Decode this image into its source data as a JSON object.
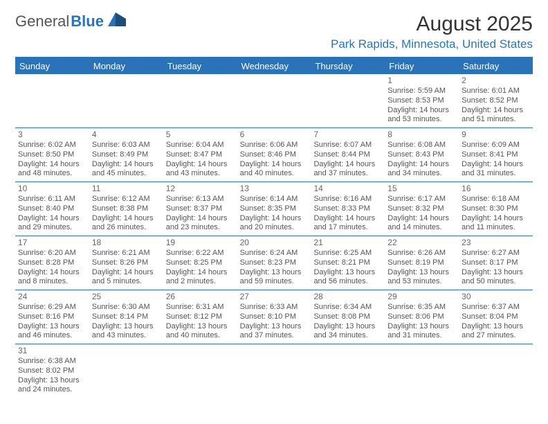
{
  "logo": {
    "text1": "General",
    "text2": "Blue"
  },
  "title": "August 2025",
  "location": "Park Rapids, Minnesota, United States",
  "colors": {
    "accent": "#2b73b8",
    "text": "#555555",
    "titleText": "#333333",
    "background": "#ffffff"
  },
  "typography": {
    "title_fontsize": 30,
    "location_fontsize": 17,
    "header_fontsize": 13,
    "cell_fontsize": 11,
    "logo_fontsize": 22
  },
  "dayHeaders": [
    "Sunday",
    "Monday",
    "Tuesday",
    "Wednesday",
    "Thursday",
    "Friday",
    "Saturday"
  ],
  "weeks": [
    [
      {
        "blank": true
      },
      {
        "blank": true
      },
      {
        "blank": true
      },
      {
        "blank": true
      },
      {
        "blank": true
      },
      {
        "day": "1",
        "sunrise": "Sunrise: 5:59 AM",
        "sunset": "Sunset: 8:53 PM",
        "daylight": "Daylight: 14 hours and 53 minutes."
      },
      {
        "day": "2",
        "sunrise": "Sunrise: 6:01 AM",
        "sunset": "Sunset: 8:52 PM",
        "daylight": "Daylight: 14 hours and 51 minutes."
      }
    ],
    [
      {
        "day": "3",
        "sunrise": "Sunrise: 6:02 AM",
        "sunset": "Sunset: 8:50 PM",
        "daylight": "Daylight: 14 hours and 48 minutes."
      },
      {
        "day": "4",
        "sunrise": "Sunrise: 6:03 AM",
        "sunset": "Sunset: 8:49 PM",
        "daylight": "Daylight: 14 hours and 45 minutes."
      },
      {
        "day": "5",
        "sunrise": "Sunrise: 6:04 AM",
        "sunset": "Sunset: 8:47 PM",
        "daylight": "Daylight: 14 hours and 43 minutes."
      },
      {
        "day": "6",
        "sunrise": "Sunrise: 6:06 AM",
        "sunset": "Sunset: 8:46 PM",
        "daylight": "Daylight: 14 hours and 40 minutes."
      },
      {
        "day": "7",
        "sunrise": "Sunrise: 6:07 AM",
        "sunset": "Sunset: 8:44 PM",
        "daylight": "Daylight: 14 hours and 37 minutes."
      },
      {
        "day": "8",
        "sunrise": "Sunrise: 6:08 AM",
        "sunset": "Sunset: 8:43 PM",
        "daylight": "Daylight: 14 hours and 34 minutes."
      },
      {
        "day": "9",
        "sunrise": "Sunrise: 6:09 AM",
        "sunset": "Sunset: 8:41 PM",
        "daylight": "Daylight: 14 hours and 31 minutes."
      }
    ],
    [
      {
        "day": "10",
        "sunrise": "Sunrise: 6:11 AM",
        "sunset": "Sunset: 8:40 PM",
        "daylight": "Daylight: 14 hours and 29 minutes."
      },
      {
        "day": "11",
        "sunrise": "Sunrise: 6:12 AM",
        "sunset": "Sunset: 8:38 PM",
        "daylight": "Daylight: 14 hours and 26 minutes."
      },
      {
        "day": "12",
        "sunrise": "Sunrise: 6:13 AM",
        "sunset": "Sunset: 8:37 PM",
        "daylight": "Daylight: 14 hours and 23 minutes."
      },
      {
        "day": "13",
        "sunrise": "Sunrise: 6:14 AM",
        "sunset": "Sunset: 8:35 PM",
        "daylight": "Daylight: 14 hours and 20 minutes."
      },
      {
        "day": "14",
        "sunrise": "Sunrise: 6:16 AM",
        "sunset": "Sunset: 8:33 PM",
        "daylight": "Daylight: 14 hours and 17 minutes."
      },
      {
        "day": "15",
        "sunrise": "Sunrise: 6:17 AM",
        "sunset": "Sunset: 8:32 PM",
        "daylight": "Daylight: 14 hours and 14 minutes."
      },
      {
        "day": "16",
        "sunrise": "Sunrise: 6:18 AM",
        "sunset": "Sunset: 8:30 PM",
        "daylight": "Daylight: 14 hours and 11 minutes."
      }
    ],
    [
      {
        "day": "17",
        "sunrise": "Sunrise: 6:20 AM",
        "sunset": "Sunset: 8:28 PM",
        "daylight": "Daylight: 14 hours and 8 minutes."
      },
      {
        "day": "18",
        "sunrise": "Sunrise: 6:21 AM",
        "sunset": "Sunset: 8:26 PM",
        "daylight": "Daylight: 14 hours and 5 minutes."
      },
      {
        "day": "19",
        "sunrise": "Sunrise: 6:22 AM",
        "sunset": "Sunset: 8:25 PM",
        "daylight": "Daylight: 14 hours and 2 minutes."
      },
      {
        "day": "20",
        "sunrise": "Sunrise: 6:24 AM",
        "sunset": "Sunset: 8:23 PM",
        "daylight": "Daylight: 13 hours and 59 minutes."
      },
      {
        "day": "21",
        "sunrise": "Sunrise: 6:25 AM",
        "sunset": "Sunset: 8:21 PM",
        "daylight": "Daylight: 13 hours and 56 minutes."
      },
      {
        "day": "22",
        "sunrise": "Sunrise: 6:26 AM",
        "sunset": "Sunset: 8:19 PM",
        "daylight": "Daylight: 13 hours and 53 minutes."
      },
      {
        "day": "23",
        "sunrise": "Sunrise: 6:27 AM",
        "sunset": "Sunset: 8:17 PM",
        "daylight": "Daylight: 13 hours and 50 minutes."
      }
    ],
    [
      {
        "day": "24",
        "sunrise": "Sunrise: 6:29 AM",
        "sunset": "Sunset: 8:16 PM",
        "daylight": "Daylight: 13 hours and 46 minutes."
      },
      {
        "day": "25",
        "sunrise": "Sunrise: 6:30 AM",
        "sunset": "Sunset: 8:14 PM",
        "daylight": "Daylight: 13 hours and 43 minutes."
      },
      {
        "day": "26",
        "sunrise": "Sunrise: 6:31 AM",
        "sunset": "Sunset: 8:12 PM",
        "daylight": "Daylight: 13 hours and 40 minutes."
      },
      {
        "day": "27",
        "sunrise": "Sunrise: 6:33 AM",
        "sunset": "Sunset: 8:10 PM",
        "daylight": "Daylight: 13 hours and 37 minutes."
      },
      {
        "day": "28",
        "sunrise": "Sunrise: 6:34 AM",
        "sunset": "Sunset: 8:08 PM",
        "daylight": "Daylight: 13 hours and 34 minutes."
      },
      {
        "day": "29",
        "sunrise": "Sunrise: 6:35 AM",
        "sunset": "Sunset: 8:06 PM",
        "daylight": "Daylight: 13 hours and 31 minutes."
      },
      {
        "day": "30",
        "sunrise": "Sunrise: 6:37 AM",
        "sunset": "Sunset: 8:04 PM",
        "daylight": "Daylight: 13 hours and 27 minutes."
      }
    ],
    [
      {
        "day": "31",
        "sunrise": "Sunrise: 6:38 AM",
        "sunset": "Sunset: 8:02 PM",
        "daylight": "Daylight: 13 hours and 24 minutes."
      },
      {
        "blank": true
      },
      {
        "blank": true
      },
      {
        "blank": true
      },
      {
        "blank": true
      },
      {
        "blank": true
      },
      {
        "blank": true
      }
    ]
  ]
}
